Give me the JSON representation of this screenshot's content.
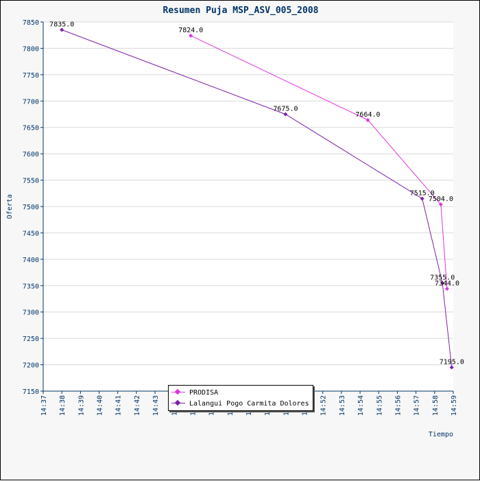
{
  "chart_data": {
    "type": "line",
    "title": "Resumen Puja MSP_ASV_005_2008",
    "xlabel": "Tiempo",
    "ylabel": "Oferta",
    "ylim": [
      7150,
      7850
    ],
    "yticks": [
      7150,
      7200,
      7250,
      7300,
      7350,
      7400,
      7450,
      7500,
      7550,
      7600,
      7650,
      7700,
      7750,
      7800,
      7850
    ],
    "xlim": [
      "14:37",
      "14:59"
    ],
    "xticks": [
      "14:37",
      "14:38",
      "14:39",
      "14:40",
      "14:41",
      "14:42",
      "14:43",
      "14:44",
      "14:45",
      "14:46",
      "14:47",
      "14:48",
      "14:49",
      "14:50",
      "14:51",
      "14:52",
      "14:53",
      "14:54",
      "14:55",
      "14:56",
      "14:57",
      "14:58",
      "14:59"
    ],
    "grid": "horizontal",
    "legend_position": "bottom-center",
    "series": [
      {
        "name": "PRODISA",
        "color": "#e033e0",
        "points": [
          {
            "x": "14:44:55",
            "y": 7824.0,
            "label": "7824.0"
          },
          {
            "x": "14:54:25",
            "y": 7664.0,
            "label": "7664.0"
          },
          {
            "x": "14:58:20",
            "y": 7504.0,
            "label": "7504.0"
          },
          {
            "x": "14:58:40",
            "y": 7344.0,
            "label": "7344.0"
          }
        ]
      },
      {
        "name": "Lalangui Pogo Carmita Dolores",
        "color": "#7a1fa8",
        "points": [
          {
            "x": "14:38:00",
            "y": 7835.0,
            "label": "7835.0"
          },
          {
            "x": "14:50:00",
            "y": 7675.0,
            "label": "7675.0"
          },
          {
            "x": "14:57:20",
            "y": 7515.0,
            "label": "7515.0"
          },
          {
            "x": "14:58:25",
            "y": 7355.0,
            "label": "7355.0"
          },
          {
            "x": "14:58:55",
            "y": 7195.0,
            "label": "7195.0"
          }
        ]
      }
    ]
  },
  "colors": {
    "title": "#003366",
    "axis": "#003366",
    "grid": "#d8d8d8",
    "plot_background": "#ffffff",
    "frame_background": "#f7f7f7"
  }
}
